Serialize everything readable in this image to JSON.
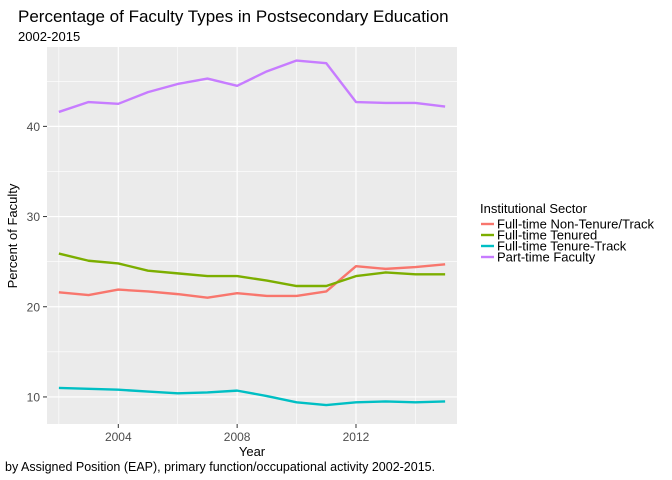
{
  "chart_data": {
    "type": "line",
    "title": "Percentage of Faculty Types in Postsecondary Education",
    "subtitle": "2002-2015",
    "caption": "by Assigned Position (EAP), primary function/occupational activity 2002-2015.",
    "xlabel": "Year",
    "ylabel": "Percent of Faculty",
    "xlim": [
      2001.6,
      2015.4
    ],
    "ylim": [
      7.0,
      48.8
    ],
    "x_ticks": [
      2004,
      2008,
      2012
    ],
    "y_ticks": [
      10,
      20,
      30,
      40
    ],
    "grid": true,
    "legend": {
      "title": "Institutional Sector",
      "position": "right"
    },
    "x": [
      2002,
      2003,
      2004,
      2005,
      2006,
      2007,
      2008,
      2009,
      2010,
      2011,
      2012,
      2013,
      2014,
      2015
    ],
    "series": [
      {
        "name": "Full-time Non-Tenure/Track",
        "color": "#F8766D",
        "values": [
          21.6,
          21.3,
          21.9,
          21.7,
          21.4,
          21.0,
          21.5,
          21.2,
          21.2,
          21.7,
          24.5,
          24.2,
          24.4,
          24.7
        ]
      },
      {
        "name": "Full-time Tenured",
        "color": "#7CAE00",
        "values": [
          25.9,
          25.1,
          24.8,
          24.0,
          23.7,
          23.4,
          23.4,
          22.9,
          22.3,
          22.3,
          23.4,
          23.8,
          23.6,
          23.6
        ]
      },
      {
        "name": "Full-time Tenure-Track",
        "color": "#00BFC4",
        "values": [
          11.0,
          10.9,
          10.8,
          10.6,
          10.4,
          10.5,
          10.7,
          10.1,
          9.4,
          9.1,
          9.4,
          9.5,
          9.4,
          9.5
        ]
      },
      {
        "name": "Part-time Faculty",
        "color": "#C77CFF",
        "values": [
          41.6,
          42.7,
          42.5,
          43.8,
          44.7,
          45.3,
          44.5,
          46.1,
          47.3,
          47.0,
          42.7,
          42.6,
          42.6,
          42.2
        ]
      }
    ]
  }
}
